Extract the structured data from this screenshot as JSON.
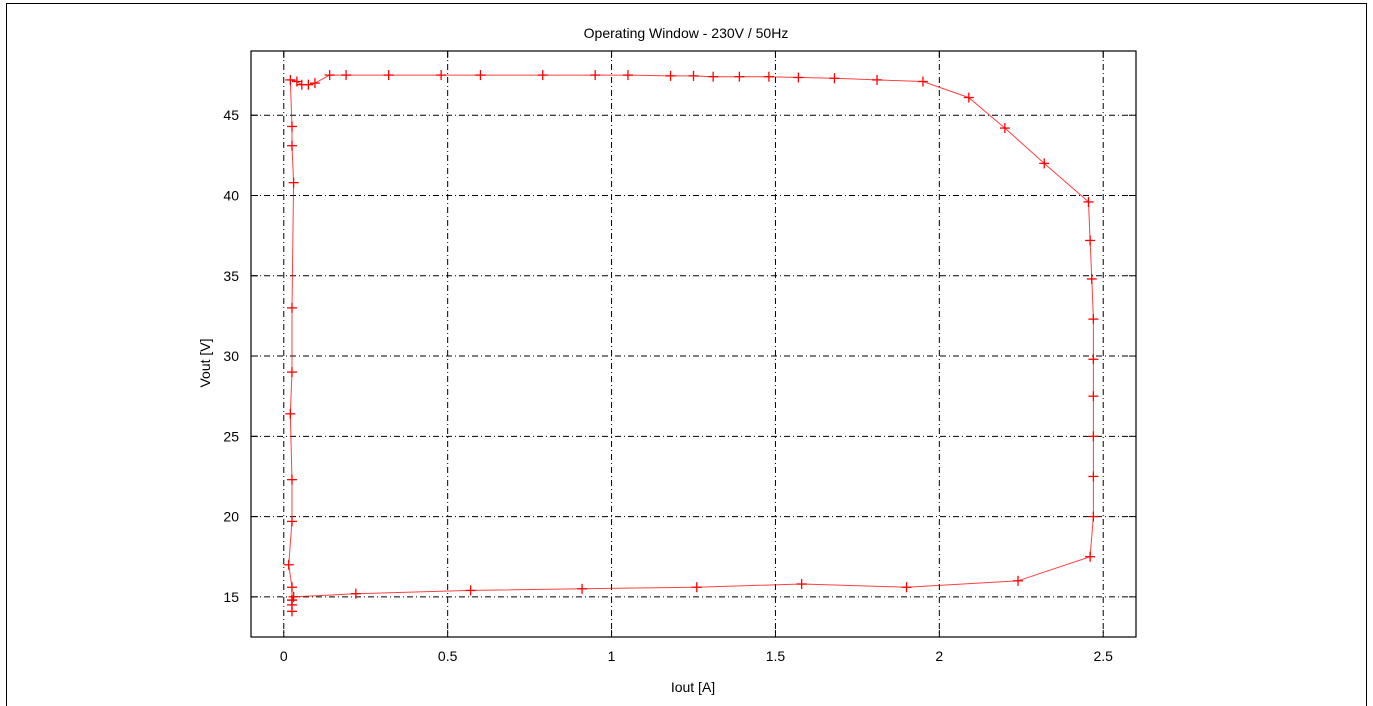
{
  "chart_data": {
    "type": "line",
    "title": "Operating Window - 230V / 50Hz",
    "xlabel": "Iout [A]",
    "ylabel": "Vout [V]",
    "xlim": [
      -0.1,
      2.6
    ],
    "ylim": [
      12.5,
      49
    ],
    "xticks": [
      0,
      0.5,
      1,
      1.5,
      2,
      2.5
    ],
    "xtick_labels": [
      "0",
      "0.5",
      "1",
      "1.5",
      "2",
      "2.5"
    ],
    "yticks": [
      15,
      20,
      25,
      30,
      35,
      40,
      45
    ],
    "ytick_labels": [
      "15",
      "20",
      "25",
      "30",
      "35",
      "40",
      "45"
    ],
    "grid": true,
    "legend": "none",
    "series": [
      {
        "color": "#ff0000",
        "marker": "plus",
        "points": [
          [
            0.025,
            14.1
          ],
          [
            0.025,
            14.5
          ],
          [
            0.025,
            14.8
          ],
          [
            0.03,
            15.0
          ],
          [
            0.22,
            15.2
          ],
          [
            0.57,
            15.4
          ],
          [
            0.91,
            15.5
          ],
          [
            1.26,
            15.6
          ],
          [
            1.58,
            15.8
          ],
          [
            1.9,
            15.6
          ],
          [
            2.24,
            16.0
          ],
          [
            2.46,
            17.5
          ],
          [
            2.47,
            20.0
          ],
          [
            2.47,
            22.5
          ],
          [
            2.47,
            25.0
          ],
          [
            2.47,
            27.5
          ],
          [
            2.47,
            29.8
          ],
          [
            2.47,
            32.3
          ],
          [
            2.465,
            34.8
          ],
          [
            2.46,
            37.2
          ],
          [
            2.455,
            39.6
          ],
          [
            2.32,
            42.0
          ],
          [
            2.2,
            44.2
          ],
          [
            2.09,
            46.1
          ],
          [
            1.95,
            47.1
          ],
          [
            1.81,
            47.2
          ],
          [
            1.68,
            47.3
          ],
          [
            1.57,
            47.35
          ],
          [
            1.48,
            47.4
          ],
          [
            1.39,
            47.4
          ],
          [
            1.31,
            47.4
          ],
          [
            1.25,
            47.45
          ],
          [
            1.18,
            47.45
          ],
          [
            1.05,
            47.5
          ],
          [
            0.95,
            47.5
          ],
          [
            0.79,
            47.5
          ],
          [
            0.6,
            47.5
          ],
          [
            0.48,
            47.5
          ],
          [
            0.32,
            47.5
          ],
          [
            0.19,
            47.5
          ],
          [
            0.14,
            47.5
          ],
          [
            0.095,
            47.0
          ],
          [
            0.075,
            46.9
          ],
          [
            0.055,
            46.9
          ],
          [
            0.04,
            47.1
          ],
          [
            0.02,
            47.2
          ],
          [
            0.025,
            44.3
          ],
          [
            0.025,
            43.1
          ],
          [
            0.03,
            40.8
          ],
          [
            0.025,
            33.0
          ],
          [
            0.025,
            29.0
          ],
          [
            0.02,
            26.4
          ],
          [
            0.025,
            22.3
          ],
          [
            0.025,
            19.7
          ],
          [
            0.015,
            17.0
          ],
          [
            0.025,
            15.6
          ],
          [
            0.025,
            14.8
          ]
        ]
      }
    ]
  }
}
